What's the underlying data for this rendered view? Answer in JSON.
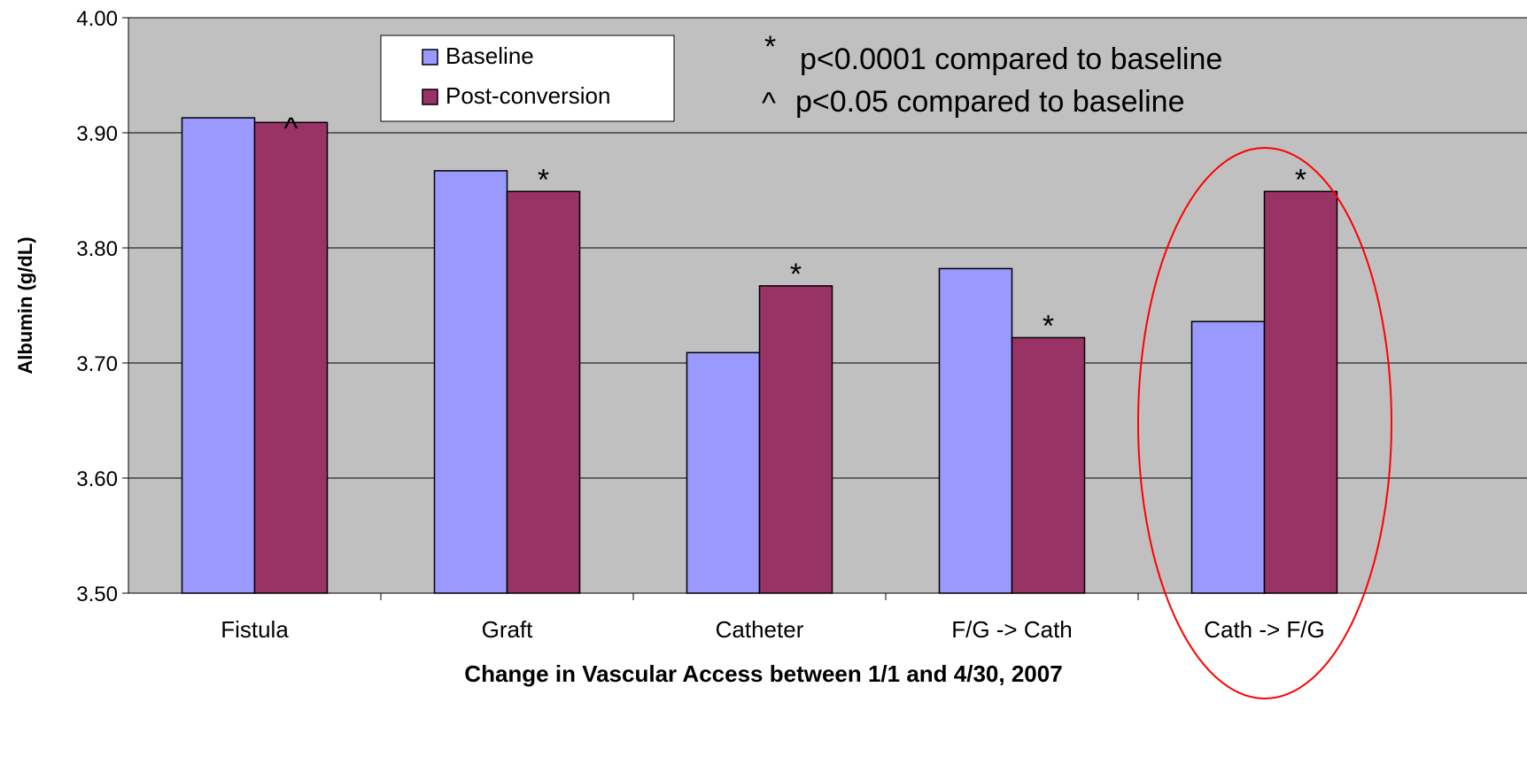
{
  "chart_data": {
    "type": "bar",
    "xlabel": "Change in Vascular Access between 1/1 and 4/30, 2007",
    "ylabel": "Albumin (g/dL)",
    "ylim": [
      3.5,
      4.0
    ],
    "yticks": [
      "3.50",
      "3.60",
      "3.70",
      "3.80",
      "3.90",
      "4.00"
    ],
    "categories": [
      "Fistula",
      "Graft",
      "Catheter",
      "F/G -> Cath",
      "Cath -> F/G"
    ],
    "series": [
      {
        "name": "Baseline",
        "color": "#9999ff",
        "values": [
          3.913,
          3.867,
          3.709,
          3.782,
          3.736
        ]
      },
      {
        "name": "Post-conversion",
        "color": "#993366",
        "values": [
          3.909,
          3.849,
          3.767,
          3.722,
          3.849
        ]
      }
    ],
    "significance_markers": [
      "^",
      "*",
      "*",
      "*",
      "*"
    ],
    "annotations": [
      {
        "symbol": "*",
        "text": "p<0.0001 compared to baseline"
      },
      {
        "symbol": "^",
        "text": "p<0.05 compared to baseline"
      }
    ],
    "grid": true,
    "legend": "top-left",
    "plot_background": "#c0c0c0",
    "highlight_color": "#ff0000"
  }
}
